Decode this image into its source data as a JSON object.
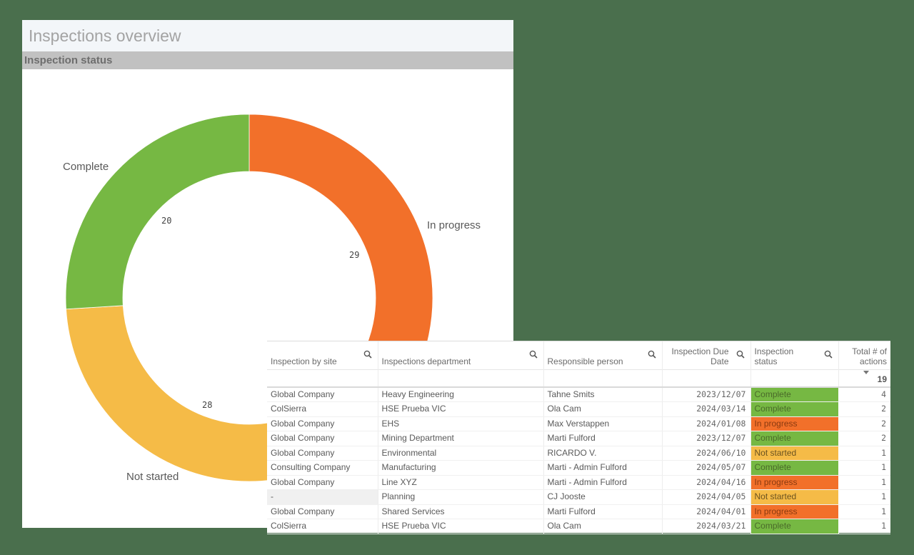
{
  "chart_panel": {
    "title": "Inspections overview",
    "subtitle": "Inspection status"
  },
  "chart_data": {
    "type": "pie",
    "subtype": "donut",
    "title": "Inspection status",
    "categories": [
      "In progress",
      "Not started",
      "Complete"
    ],
    "values": [
      29,
      28,
      20
    ],
    "colors": [
      "#f2702a",
      "#f5bb47",
      "#76b843"
    ],
    "labels": {
      "in_progress": "In progress",
      "not_started": "Not started",
      "complete": "Complete"
    },
    "value_labels": {
      "in_progress": "29",
      "not_started": "28",
      "complete": "20"
    }
  },
  "table": {
    "columns": [
      {
        "label": "Inspection by site",
        "searchable": true
      },
      {
        "label": "Inspections department",
        "searchable": true
      },
      {
        "label": "Responsible person",
        "searchable": true
      },
      {
        "label": "Inspection Due Date",
        "searchable": true
      },
      {
        "label": "Inspection status",
        "searchable": true
      },
      {
        "label": "Total # of actions",
        "searchable": false
      }
    ],
    "total_actions": "19",
    "rows": [
      {
        "site": "Global Company",
        "department": "Heavy Engineering",
        "person": "Tahne Smits",
        "due": "2023/12/07",
        "status": "Complete",
        "actions": "4"
      },
      {
        "site": "ColSierra",
        "department": "HSE Prueba VIC",
        "person": "Ola Cam",
        "due": "2024/03/14",
        "status": "Complete",
        "actions": "2"
      },
      {
        "site": "Global Company",
        "department": "EHS",
        "person": "Max Verstappen",
        "due": "2024/01/08",
        "status": "In progress",
        "actions": "2"
      },
      {
        "site": "Global Company",
        "department": "Mining Department",
        "person": "Marti Fulford",
        "due": "2023/12/07",
        "status": "Complete",
        "actions": "2"
      },
      {
        "site": "Global Company",
        "department": "Environmental",
        "person": "RICARDO V.",
        "due": "2024/06/10",
        "status": "Not started",
        "actions": "1"
      },
      {
        "site": "Consulting Company",
        "department": "Manufacturing",
        "person": "Marti - Admin Fulford",
        "due": "2024/05/07",
        "status": "Complete",
        "actions": "1"
      },
      {
        "site": "Global Company",
        "department": "Line XYZ",
        "person": "Marti - Admin Fulford",
        "due": "2024/04/16",
        "status": "In progress",
        "actions": "1"
      },
      {
        "site": "-",
        "department": "Planning",
        "person": "CJ Jooste",
        "due": "2024/04/05",
        "status": "Not started",
        "actions": "1"
      },
      {
        "site": "Global Company",
        "department": "Shared Services",
        "person": "Marti Fulford",
        "due": "2024/04/01",
        "status": "In progress",
        "actions": "1"
      },
      {
        "site": "ColSierra",
        "department": "HSE Prueba VIC",
        "person": "Ola Cam",
        "due": "2024/03/21",
        "status": "Complete",
        "actions": "1"
      }
    ]
  }
}
